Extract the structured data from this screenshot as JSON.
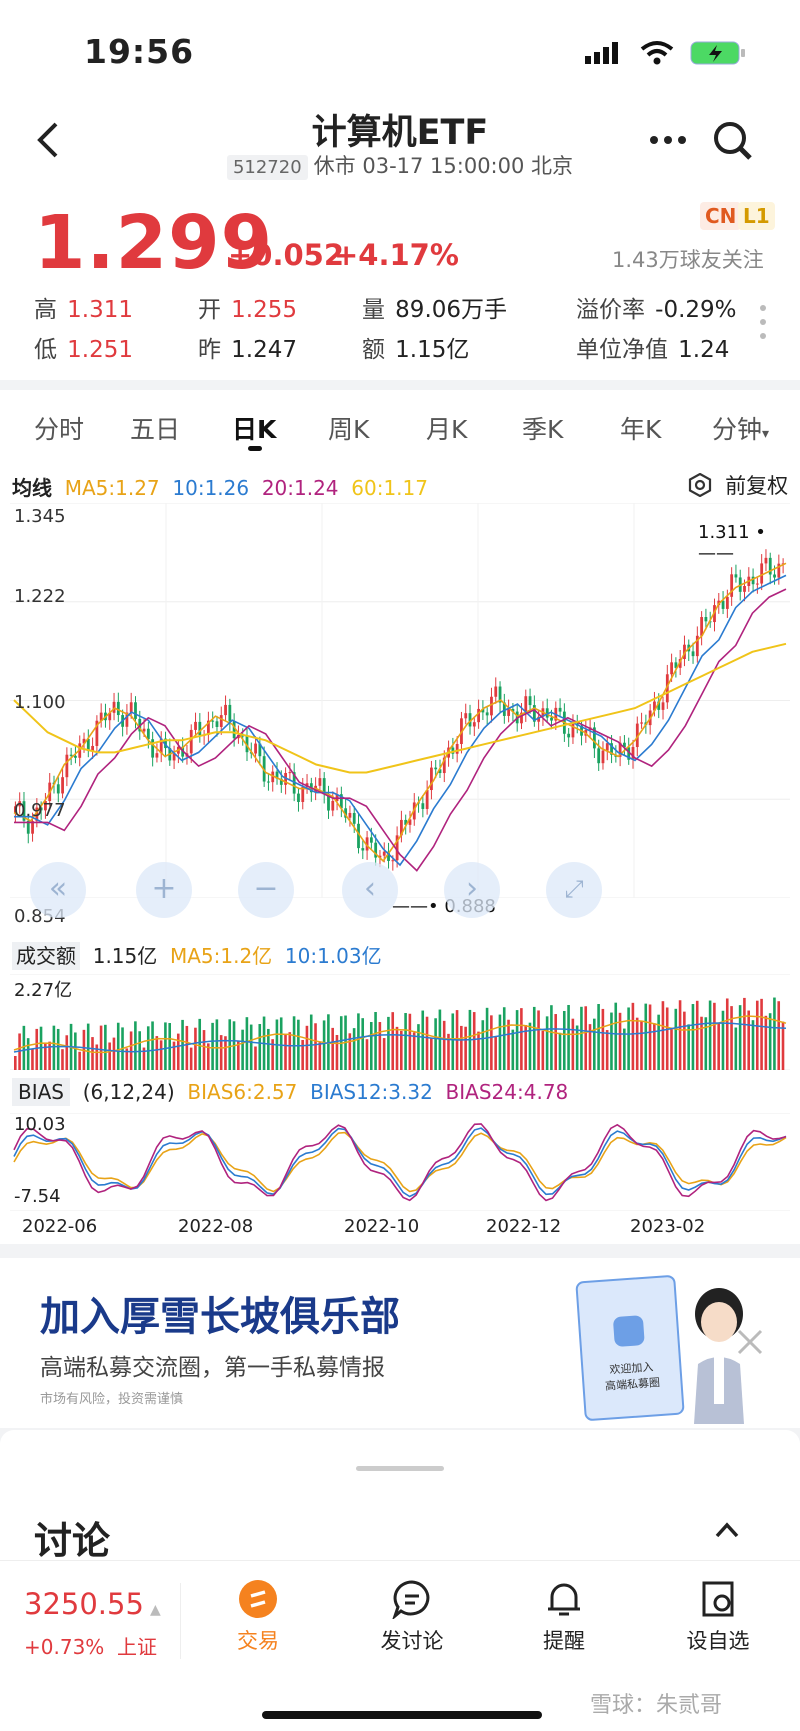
{
  "status": {
    "time": "19:56"
  },
  "header": {
    "title": "计算机ETF",
    "code": "512720",
    "market_status": "休市 03-17 15:00:00 北京"
  },
  "quote": {
    "price": "1.299",
    "change": "+0.052",
    "change_pct": "+4.17%",
    "tags": [
      "CN",
      "L1"
    ],
    "followers": "1.43万球友关注",
    "fields": [
      {
        "label": "高",
        "value": "1.311",
        "red": true
      },
      {
        "label": "开",
        "value": "1.255",
        "red": true
      },
      {
        "label": "量",
        "value": "89.06万手",
        "red": false
      },
      {
        "label": "溢价率",
        "value": "-0.29%",
        "red": false
      },
      {
        "label": "低",
        "value": "1.251",
        "red": true
      },
      {
        "label": "昨",
        "value": "1.247",
        "red": false
      },
      {
        "label": "额",
        "value": "1.15亿",
        "red": false
      },
      {
        "label": "单位净值",
        "value": "1.24",
        "red": false
      }
    ]
  },
  "tabs": [
    "分时",
    "五日",
    "日K",
    "周K",
    "月K",
    "季K",
    "年K",
    "分钟"
  ],
  "active_tab": "日K",
  "ma_legend": {
    "label": "均线",
    "items": [
      {
        "text": "MA5:1.27",
        "color": "#e8a317"
      },
      {
        "text": "10:1.26",
        "color": "#2b7bd0"
      },
      {
        "text": "20:1.24",
        "color": "#b0237e"
      },
      {
        "text": "60:1.17",
        "color": "#f0c419"
      }
    ],
    "adjust": "前复权"
  },
  "chart_data": {
    "type": "candlestick",
    "price_axis": {
      "top": "1.345",
      "mid1": "1.222",
      "mid2": "1.100",
      "mid3": "0.977",
      "bottom": "0.854",
      "ylim": [
        0.854,
        1.345
      ]
    },
    "high_marker": "1.311",
    "low_marker": "0.888",
    "x_labels": [
      "2022-06",
      "2022-08",
      "2022-10",
      "2022-12",
      "2023-02"
    ],
    "volume": {
      "label": "成交额",
      "current": "1.15亿",
      "ma5": "MA5:1.2亿",
      "ma10": "10:1.03亿",
      "max_label": "2.27亿"
    },
    "bias": {
      "label": "BIAS",
      "params": "(6,12,24)",
      "b6": "BIAS6:2.57",
      "b12": "BIAS12:3.32",
      "b24": "BIAS24:4.78",
      "max_label": "10.03",
      "min_label": "-7.54"
    },
    "ma5_path": [
      0.96,
      0.95,
      0.98,
      1.02,
      1.04,
      1.07,
      1.09,
      1.08,
      1.05,
      1.03,
      1.04,
      1.06,
      1.08,
      1.07,
      1.04,
      1.01,
      1.0,
      0.99,
      0.99,
      0.98,
      0.95,
      0.92,
      0.9,
      0.93,
      0.97,
      1.0,
      1.04,
      1.07,
      1.09,
      1.1,
      1.08,
      1.09,
      1.08,
      1.07,
      1.06,
      1.04,
      1.03,
      1.05,
      1.08,
      1.12,
      1.16,
      1.18,
      1.22,
      1.24,
      1.25,
      1.26,
      1.27
    ],
    "ma60_path": [
      1.1,
      1.08,
      1.06,
      1.05,
      1.04,
      1.035,
      1.035,
      1.04,
      1.045,
      1.05,
      1.05,
      1.055,
      1.06,
      1.06,
      1.055,
      1.05,
      1.04,
      1.03,
      1.02,
      1.015,
      1.01,
      1.01,
      1.015,
      1.02,
      1.025,
      1.03,
      1.035,
      1.04,
      1.045,
      1.05,
      1.055,
      1.06,
      1.065,
      1.07,
      1.075,
      1.08,
      1.085,
      1.09,
      1.1,
      1.11,
      1.12,
      1.13,
      1.14,
      1.15,
      1.16,
      1.165,
      1.17
    ]
  },
  "ad": {
    "title": "加入厚雪长坡俱乐部",
    "subtitle": "高端私募交流圈，第一手私募情报",
    "disclaimer": "市场有风险，投资需谨慎",
    "card_text1": "欢迎加入",
    "card_text2": "高端私募圈"
  },
  "discussion": {
    "title": "讨论"
  },
  "bottom_bar": {
    "index_value": "3250.55",
    "index_change": "+0.73%",
    "index_name": "上证",
    "items": [
      "交易",
      "发讨论",
      "提醒",
      "设自选"
    ],
    "watermark": "雪球：朱贰哥"
  }
}
